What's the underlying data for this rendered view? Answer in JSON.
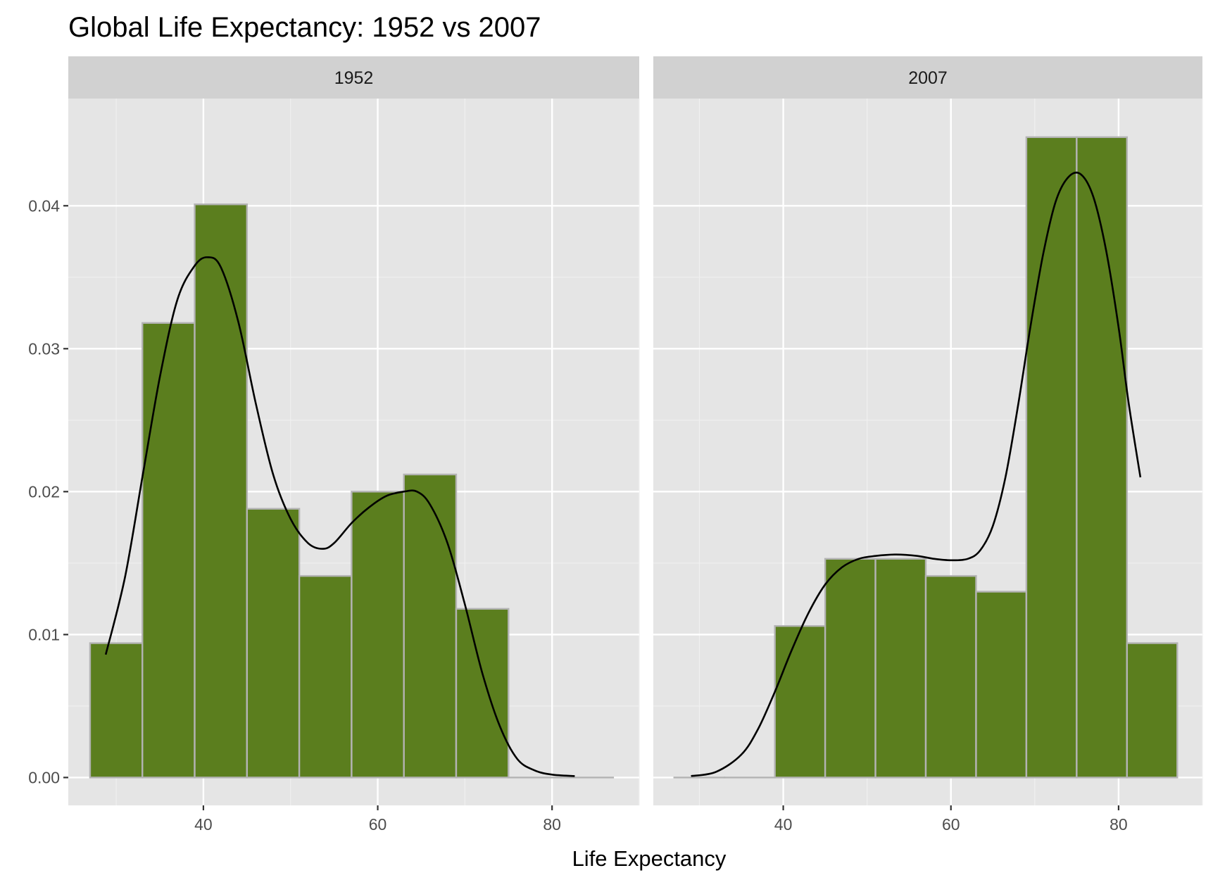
{
  "chart_data": {
    "type": "bar",
    "title": "Global Life Expectancy: 1952 vs 2007",
    "xlabel": "Life Expectancy",
    "ylabel": "",
    "xlim": [
      24.5,
      90.0
    ],
    "ylim": [
      -0.00195,
      0.0475
    ],
    "x_ticks": [
      40,
      60,
      80
    ],
    "y_ticks": [
      0.0,
      0.01,
      0.02,
      0.03,
      0.04
    ],
    "y_tick_labels": [
      "0.00",
      "0.01",
      "0.02",
      "0.03",
      "0.04"
    ],
    "grid": true,
    "bin_width": 6,
    "panels": [
      {
        "label": "1952",
        "bins": [
          {
            "x0": 27,
            "x1": 33,
            "density": 0.0094
          },
          {
            "x0": 33,
            "x1": 39,
            "density": 0.0318
          },
          {
            "x0": 39,
            "x1": 45,
            "density": 0.0401
          },
          {
            "x0": 45,
            "x1": 51,
            "density": 0.0188
          },
          {
            "x0": 51,
            "x1": 57,
            "density": 0.0141
          },
          {
            "x0": 57,
            "x1": 63,
            "density": 0.02
          },
          {
            "x0": 63,
            "x1": 69,
            "density": 0.0212
          },
          {
            "x0": 69,
            "x1": 75,
            "density": 0.0118
          },
          {
            "x0": 75,
            "x1": 81,
            "density": 0.0
          },
          {
            "x0": 81,
            "x1": 87,
            "density": 0.0
          }
        ],
        "density_curve": {
          "x": [
            28.8,
            31,
            33,
            35,
            37,
            39,
            40.5,
            42,
            44,
            46,
            48,
            50,
            52,
            53.7,
            55,
            57,
            59,
            61,
            63,
            64.5,
            66,
            68,
            70,
            72,
            74,
            76,
            78,
            80,
            82.6
          ],
          "y": [
            0.0086,
            0.014,
            0.021,
            0.028,
            0.0334,
            0.0358,
            0.0364,
            0.0357,
            0.0319,
            0.0262,
            0.0212,
            0.0181,
            0.0164,
            0.016,
            0.0164,
            0.0178,
            0.0189,
            0.0197,
            0.02,
            0.02,
            0.0191,
            0.0164,
            0.0121,
            0.0073,
            0.0036,
            0.0013,
            0.0005,
            0.0002,
            0.0001
          ]
        }
      },
      {
        "label": "2007",
        "bins": [
          {
            "x0": 27,
            "x1": 33,
            "density": 0.0
          },
          {
            "x0": 33,
            "x1": 39,
            "density": 0.0
          },
          {
            "x0": 39,
            "x1": 45,
            "density": 0.0106
          },
          {
            "x0": 45,
            "x1": 51,
            "density": 0.0153
          },
          {
            "x0": 51,
            "x1": 57,
            "density": 0.0153
          },
          {
            "x0": 57,
            "x1": 63,
            "density": 0.0141
          },
          {
            "x0": 63,
            "x1": 69,
            "density": 0.013
          },
          {
            "x0": 69,
            "x1": 75,
            "density": 0.0448
          },
          {
            "x0": 75,
            "x1": 81,
            "density": 0.0448
          },
          {
            "x0": 81,
            "x1": 87,
            "density": 0.0094
          }
        ],
        "density_curve": {
          "x": [
            29,
            32,
            35,
            37,
            39,
            41,
            43,
            45,
            47,
            49,
            51,
            53.5,
            56,
            58,
            60,
            62,
            63.5,
            65,
            66.5,
            68,
            69.5,
            71,
            72.5,
            74,
            75.5,
            77,
            78.5,
            80,
            81.2,
            82.6
          ],
          "y": [
            0.0001,
            0.0004,
            0.0016,
            0.0034,
            0.006,
            0.0089,
            0.0115,
            0.0135,
            0.0147,
            0.0153,
            0.0155,
            0.0156,
            0.0155,
            0.0153,
            0.0152,
            0.0153,
            0.0159,
            0.0176,
            0.021,
            0.026,
            0.0316,
            0.0366,
            0.0403,
            0.042,
            0.0422,
            0.0406,
            0.0369,
            0.0315,
            0.0262,
            0.021
          ]
        }
      }
    ]
  },
  "colors": {
    "bar_fill": "#5b7e1e",
    "bar_outline": "#b3b3b3",
    "panel_bg": "#e5e5e5",
    "strip_bg": "#d1d1d1",
    "grid_major": "#ffffff",
    "grid_minor": "#f0f0f0",
    "curve": "#000000"
  }
}
